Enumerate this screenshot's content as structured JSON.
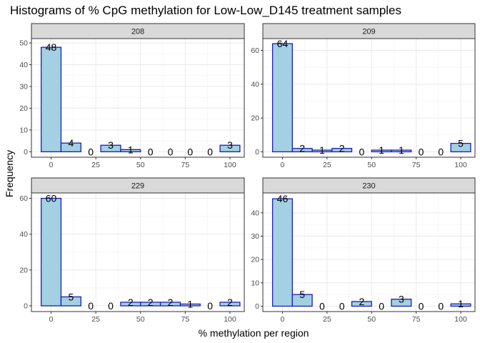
{
  "chart_data": {
    "type": "bar",
    "title": "Histograms of % CpG methylation for Low-Low_D145 treatment samples",
    "xlabel": "% methylation per region",
    "ylabel": "Frequency",
    "x_ticks": [
      0,
      25,
      50,
      75,
      100
    ],
    "xlim": [
      -11,
      108
    ],
    "bin_centers": [
      0,
      11.11,
      22.22,
      33.33,
      44.44,
      55.56,
      66.67,
      77.78,
      88.89,
      100
    ],
    "bin_width": 11.11,
    "grid": true,
    "bar_fill": "#a3d0e2",
    "bar_stroke": "#1d1eb0",
    "panels": [
      {
        "name": "208",
        "values": [
          48,
          4,
          0,
          3,
          1,
          0,
          0,
          0,
          0,
          3
        ],
        "y_ticks": [
          0,
          10,
          20,
          30,
          40,
          50
        ],
        "ylim": [
          -2.5,
          52
        ]
      },
      {
        "name": "209",
        "values": [
          64,
          2,
          1,
          2,
          0,
          1,
          1,
          0,
          0,
          5
        ],
        "y_ticks": [
          0,
          20,
          40,
          60
        ],
        "ylim": [
          -3.2,
          67
        ]
      },
      {
        "name": "229",
        "values": [
          60,
          5,
          0,
          0,
          2,
          2,
          2,
          1,
          0,
          2
        ],
        "y_ticks": [
          0,
          20,
          40,
          60
        ],
        "ylim": [
          -3.2,
          63
        ]
      },
      {
        "name": "230",
        "values": [
          46,
          5,
          0,
          0,
          2,
          0,
          3,
          0,
          0,
          1
        ],
        "y_ticks": [
          0,
          10,
          20,
          30,
          40
        ],
        "ylim": [
          -2.3,
          48.5
        ]
      }
    ]
  }
}
